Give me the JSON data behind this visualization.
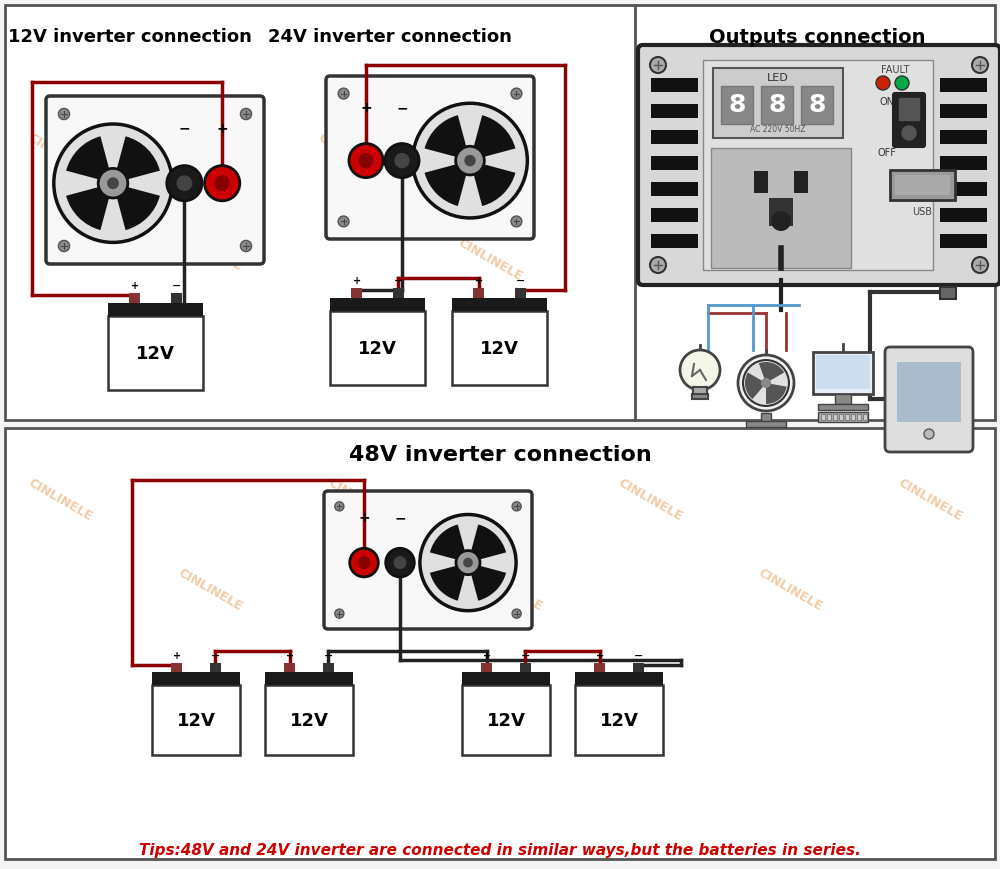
{
  "bg_color": "#f5f5f5",
  "panel_bg": "#ffffff",
  "border_color": "#444444",
  "red_wire": "#8B0000",
  "black_wire": "#222222",
  "title_12v": "12V inverter connection",
  "title_24v": "24V inverter connection",
  "title_outputs": "Outputs connection",
  "title_48v": "48V inverter connection",
  "tip_text": "Tips:48V and 24V inverter are connected in similar ways,but the batteries in series.",
  "tip_color": "#cc0000",
  "watermark": "CINLINELE",
  "watermark_color": "#e8a060",
  "inv_bg": "#f8f8f8",
  "inv_border": "#333333",
  "fan_outer": "#111111",
  "fan_blade": "#111111",
  "terminal_red": "#cc0000",
  "terminal_black": "#1a1a1a",
  "battery_body": "#ffffff",
  "battery_top": "#1a1a1a",
  "screw_color": "#888888"
}
